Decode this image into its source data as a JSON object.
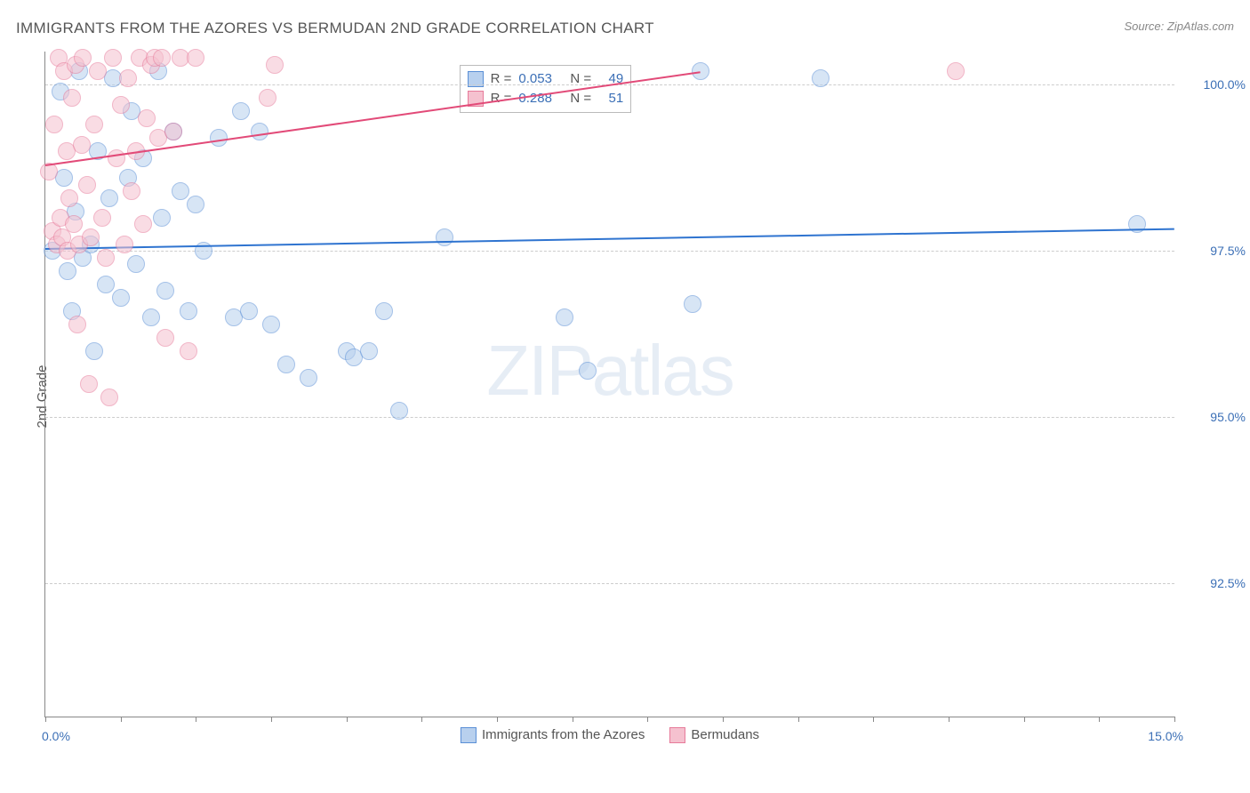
{
  "title": "IMMIGRANTS FROM THE AZORES VS BERMUDAN 2ND GRADE CORRELATION CHART",
  "source": "Source: ZipAtlas.com",
  "ylabel": "2nd Grade",
  "watermark": {
    "bold": "ZIP",
    "light": "atlas"
  },
  "chart": {
    "type": "scatter",
    "background_color": "#ffffff",
    "grid_color": "#cccccc",
    "axis_color": "#888888",
    "tick_label_color": "#3b6fb6",
    "label_fontsize": 15,
    "title_fontsize": 17,
    "marker_radius": 9,
    "marker_opacity": 0.55,
    "xlim": [
      0.0,
      15.0
    ],
    "ylim": [
      90.5,
      100.5
    ],
    "yticks": [
      92.5,
      95.0,
      97.5,
      100.0
    ],
    "ytick_labels": [
      "92.5%",
      "95.0%",
      "97.5%",
      "100.0%"
    ],
    "xtick_positions": [
      0,
      1,
      2,
      3,
      4,
      5,
      6,
      7,
      8,
      9,
      10,
      11,
      12,
      13,
      14,
      15
    ],
    "xlim_labels": {
      "min": "0.0%",
      "max": "15.0%"
    },
    "series": [
      {
        "key": "azores",
        "label": "Immigrants from the Azores",
        "fill_color": "#b8d0ee",
        "stroke_color": "#5a8fd6",
        "line_color": "#2f74d0",
        "R": "0.053",
        "N": "49",
        "trend": {
          "x1": 0.0,
          "y1": 97.55,
          "x2": 15.0,
          "y2": 97.85
        },
        "points": [
          [
            0.1,
            97.5
          ],
          [
            0.2,
            99.9
          ],
          [
            0.25,
            98.6
          ],
          [
            0.3,
            97.2
          ],
          [
            0.35,
            96.6
          ],
          [
            0.4,
            98.1
          ],
          [
            0.45,
            100.2
          ],
          [
            0.5,
            97.4
          ],
          [
            0.6,
            97.6
          ],
          [
            0.65,
            96.0
          ],
          [
            0.7,
            99.0
          ],
          [
            0.8,
            97.0
          ],
          [
            0.85,
            98.3
          ],
          [
            0.9,
            100.1
          ],
          [
            1.0,
            96.8
          ],
          [
            1.1,
            98.6
          ],
          [
            1.15,
            99.6
          ],
          [
            1.2,
            97.3
          ],
          [
            1.3,
            98.9
          ],
          [
            1.4,
            96.5
          ],
          [
            1.5,
            100.2
          ],
          [
            1.55,
            98.0
          ],
          [
            1.6,
            96.9
          ],
          [
            1.7,
            99.3
          ],
          [
            1.8,
            98.4
          ],
          [
            1.9,
            96.6
          ],
          [
            2.0,
            98.2
          ],
          [
            2.1,
            97.5
          ],
          [
            2.3,
            99.2
          ],
          [
            2.5,
            96.5
          ],
          [
            2.6,
            99.6
          ],
          [
            2.7,
            96.6
          ],
          [
            2.85,
            99.3
          ],
          [
            3.0,
            96.4
          ],
          [
            3.2,
            95.8
          ],
          [
            3.5,
            95.6
          ],
          [
            4.0,
            96.0
          ],
          [
            4.1,
            95.9
          ],
          [
            4.3,
            96.0
          ],
          [
            4.5,
            96.6
          ],
          [
            4.7,
            95.1
          ],
          [
            5.3,
            97.7
          ],
          [
            6.9,
            96.5
          ],
          [
            7.2,
            95.7
          ],
          [
            8.6,
            96.7
          ],
          [
            8.7,
            100.2
          ],
          [
            10.3,
            100.1
          ],
          [
            14.5,
            97.9
          ]
        ]
      },
      {
        "key": "bermudans",
        "label": "Bermudans",
        "fill_color": "#f5c1cf",
        "stroke_color": "#e77a9a",
        "line_color": "#e24a78",
        "R": "0.288",
        "N": "51",
        "trend": {
          "x1": 0.0,
          "y1": 98.8,
          "x2": 8.7,
          "y2": 100.2
        },
        "points": [
          [
            0.05,
            98.7
          ],
          [
            0.1,
            97.8
          ],
          [
            0.12,
            99.4
          ],
          [
            0.15,
            97.6
          ],
          [
            0.18,
            100.4
          ],
          [
            0.2,
            98.0
          ],
          [
            0.22,
            97.7
          ],
          [
            0.25,
            100.2
          ],
          [
            0.28,
            99.0
          ],
          [
            0.3,
            97.5
          ],
          [
            0.32,
            98.3
          ],
          [
            0.35,
            99.8
          ],
          [
            0.38,
            97.9
          ],
          [
            0.4,
            100.3
          ],
          [
            0.42,
            96.4
          ],
          [
            0.45,
            97.6
          ],
          [
            0.48,
            99.1
          ],
          [
            0.5,
            100.4
          ],
          [
            0.55,
            98.5
          ],
          [
            0.58,
            95.5
          ],
          [
            0.6,
            97.7
          ],
          [
            0.65,
            99.4
          ],
          [
            0.7,
            100.2
          ],
          [
            0.75,
            98.0
          ],
          [
            0.8,
            97.4
          ],
          [
            0.85,
            95.3
          ],
          [
            0.9,
            100.4
          ],
          [
            0.95,
            98.9
          ],
          [
            1.0,
            99.7
          ],
          [
            1.05,
            97.6
          ],
          [
            1.1,
            100.1
          ],
          [
            1.15,
            98.4
          ],
          [
            1.2,
            99.0
          ],
          [
            1.25,
            100.4
          ],
          [
            1.3,
            97.9
          ],
          [
            1.35,
            99.5
          ],
          [
            1.4,
            100.3
          ],
          [
            1.45,
            100.4
          ],
          [
            1.5,
            99.2
          ],
          [
            1.55,
            100.4
          ],
          [
            1.6,
            96.2
          ],
          [
            1.7,
            99.3
          ],
          [
            1.8,
            100.4
          ],
          [
            1.9,
            96.0
          ],
          [
            2.0,
            100.4
          ],
          [
            2.95,
            99.8
          ],
          [
            3.05,
            100.3
          ],
          [
            12.1,
            100.2
          ]
        ]
      }
    ]
  },
  "stats_box": {
    "rows": [
      {
        "series_key": "azores",
        "R_label": "R =",
        "N_label": "N ="
      },
      {
        "series_key": "bermudans",
        "R_label": "R =",
        "N_label": "N ="
      }
    ]
  }
}
